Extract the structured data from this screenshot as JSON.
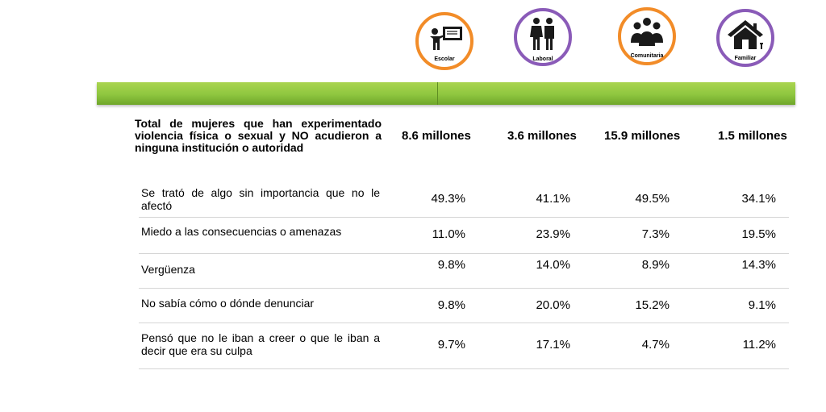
{
  "groups": [
    {
      "key": "escolar",
      "label": "Escolar",
      "icon": "teacher-board-icon",
      "ring_color": "#f28c28"
    },
    {
      "key": "laboral",
      "label": "Laboral",
      "icon": "businesspeople-icon",
      "ring_color": "#8a5bb8"
    },
    {
      "key": "comunitaria",
      "label": "Comunitaria",
      "icon": "community-group-icon",
      "ring_color": "#f28c28"
    },
    {
      "key": "familiar",
      "label": "Familiar",
      "icon": "house-icon",
      "ring_color": "#8a5bb8"
    }
  ],
  "bar_color": "#8ec63f",
  "total_row": {
    "label": "Total de mujeres que han experimentado violencia física o sexual y NO acudieron a ninguna institución o autoridad",
    "values": [
      "8.6 millones",
      "3.6 millones",
      "15.9 millones",
      "1.5 millones"
    ]
  },
  "chart_data": {
    "type": "table",
    "columns": [
      "Escolar",
      "Laboral",
      "Comunitaria",
      "Familiar"
    ],
    "rows": [
      {
        "label": "Se trató de algo sin importancia que no le afectó",
        "values": [
          "49.3%",
          "41.1%",
          "49.5%",
          "34.1%"
        ]
      },
      {
        "label": "Miedo a las consecuencias o amenazas",
        "values": [
          "11.0%",
          "23.9%",
          "7.3%",
          "19.5%"
        ]
      },
      {
        "label": "Vergüenza",
        "values": [
          "9.8%",
          "14.0%",
          "8.9%",
          "14.3%"
        ]
      },
      {
        "label": "No sabía cómo o dónde denunciar",
        "values": [
          "9.8%",
          "20.0%",
          "15.2%",
          "9.1%"
        ]
      },
      {
        "label": "Pensó que no le iban a creer o que le iban a decir que era su culpa",
        "values": [
          "9.7%",
          "17.1%",
          "4.7%",
          "11.2%"
        ]
      }
    ]
  }
}
